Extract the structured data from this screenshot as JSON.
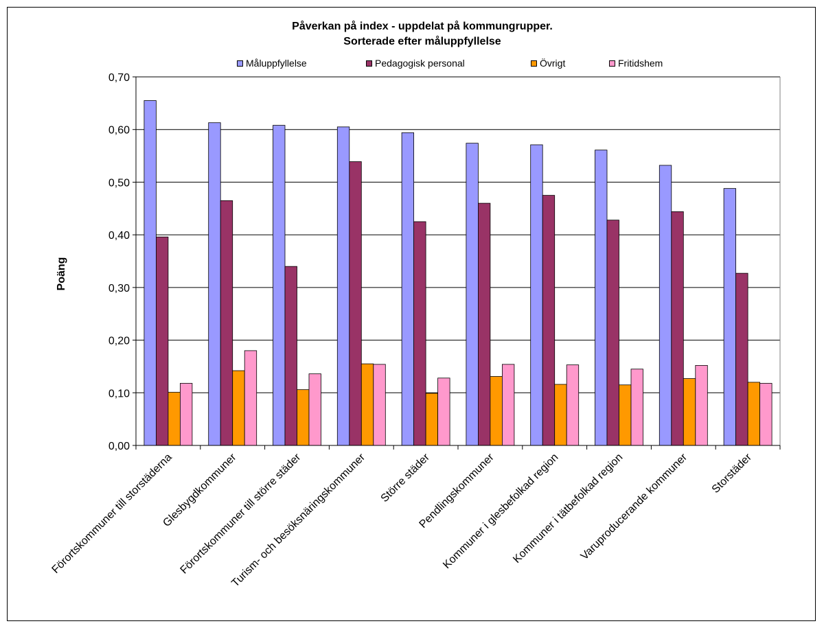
{
  "chart_data": {
    "type": "bar",
    "title": "Påverkan på index - uppdelat på kommungrupper.",
    "subtitle": "Sorterade efter måluppfyllelse",
    "ylabel": "Poäng",
    "xlabel": "",
    "ylim": [
      0,
      0.7
    ],
    "yticks": [
      "0,00",
      "0,10",
      "0,20",
      "0,30",
      "0,40",
      "0,50",
      "0,60",
      "0,70"
    ],
    "grid": true,
    "legend_position": "top",
    "categories": [
      "Förortskommuner till storstäderna",
      "Glesbygdkommuner",
      "Förortskommuner till större städer",
      "Turism- och besöksnäringskommuner",
      "Större städer",
      "Pendlingskommuner",
      "Kommuner i glesbefolkad region",
      "Kommuner i tätbefolkad region",
      "Varuproducerande kommuner",
      "Storstäder"
    ],
    "series": [
      {
        "name": "Måluppfyllelse",
        "color": "#9999ff",
        "values": [
          0.655,
          0.613,
          0.608,
          0.605,
          0.594,
          0.574,
          0.571,
          0.561,
          0.532,
          0.488
        ]
      },
      {
        "name": "Pedagogisk personal",
        "color": "#993366",
        "values": [
          0.396,
          0.465,
          0.34,
          0.539,
          0.425,
          0.46,
          0.475,
          0.428,
          0.444,
          0.327
        ]
      },
      {
        "name": "Övrigt",
        "color": "#ff9900",
        "values": [
          0.101,
          0.142,
          0.106,
          0.155,
          0.099,
          0.131,
          0.116,
          0.115,
          0.127,
          0.12
        ]
      },
      {
        "name": "Fritidshem",
        "color": "#ff99cc",
        "values": [
          0.118,
          0.18,
          0.136,
          0.154,
          0.128,
          0.154,
          0.153,
          0.145,
          0.152,
          0.118
        ]
      }
    ]
  }
}
